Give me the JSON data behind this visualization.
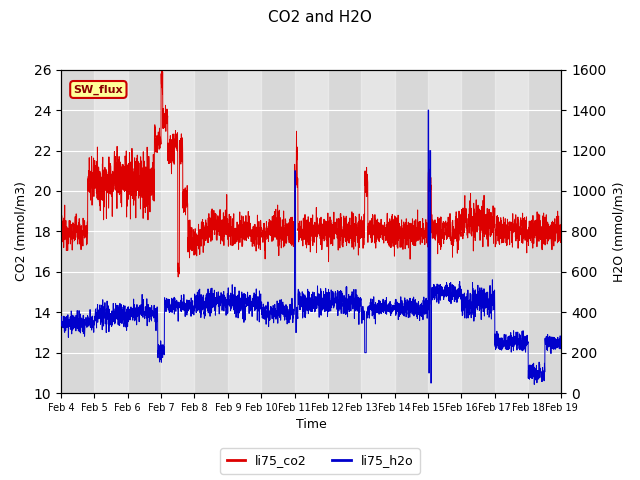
{
  "title": "CO2 and H2O",
  "xlabel": "Time",
  "ylabel_left": "CO2 (mmol/m3)",
  "ylabel_right": "H2O (mmol/m3)",
  "ylim_left": [
    10,
    26
  ],
  "ylim_right": [
    0,
    1600
  ],
  "xlim": [
    0,
    15
  ],
  "xtick_labels": [
    "Feb 4",
    "Feb 5",
    "Feb 6",
    "Feb 7",
    "Feb 8",
    "Feb 9",
    "Feb 10",
    "Feb 11",
    "Feb 12",
    "Feb 13",
    "Feb 14",
    "Feb 15",
    "Feb 16",
    "Feb 17",
    "Feb 18",
    "Feb 19"
  ],
  "annotation_text": "SW_flux",
  "annotation_box_color": "#ffff99",
  "annotation_box_edge": "#cc0000",
  "co2_color": "#dd0000",
  "h2o_color": "#0000cc",
  "background_color": "#d8d8d8",
  "legend_co2": "li75_co2",
  "legend_h2o": "li75_h2o"
}
